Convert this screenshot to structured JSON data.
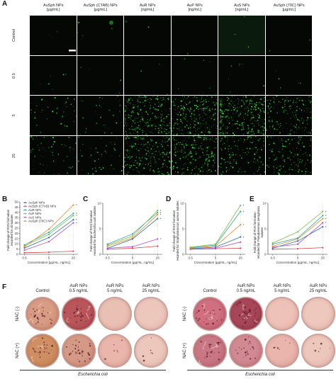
{
  "panel_a": {
    "label": "A",
    "columns": [
      "AuSph NPs\n[µg/mL]",
      "AuSph (CTAB) NPs\n[µg/mL]",
      "AuR NPs\n[ng/mL]",
      "AuP NPs\n[ng/mL]",
      "AuS NPs\n[ng/mL]",
      "AuSph (70C) NPs\n[µg/mL]"
    ],
    "rows": [
      "Control",
      "0.5",
      "5",
      "25"
    ],
    "fluorescence_color": "#37d23c"
  },
  "panel_b": {
    "label": "B"
  },
  "panel_c": {
    "label": "C"
  },
  "panel_d": {
    "label": "D"
  },
  "panel_e": {
    "label": "E"
  },
  "chart_data": [
    {
      "id": "B",
      "type": "line",
      "ylabel": "Fold change of ROS formation\nrecorded for all isolates",
      "xlabel": "Concentration [µg/mL, ng/mL]",
      "categories": [
        "0.5",
        "5",
        "25"
      ],
      "ylim": [
        0,
        50
      ],
      "yticks": [
        0,
        5,
        10,
        15,
        20,
        25,
        30,
        35,
        40,
        45,
        50
      ],
      "legend": "top-left",
      "series": [
        {
          "name": "AuSph NPs",
          "color": "#2a6db5",
          "values": [
            6,
            16,
            33
          ]
        },
        {
          "name": "AuSph (CTAB) NPs",
          "color": "#d94040",
          "values": [
            1.5,
            2,
            3
          ]
        },
        {
          "name": "AuR NPs",
          "color": "#2ea7a0",
          "values": [
            9,
            21,
            39
          ]
        },
        {
          "name": "AuP NPs",
          "color": "#7fbf3f",
          "values": [
            8,
            19,
            37
          ]
        },
        {
          "name": "AuS NPs",
          "color": "#b44fc2",
          "values": [
            4,
            12,
            30
          ]
        },
        {
          "name": "AuSph (70C) NPs",
          "color": "#e08a2c",
          "values": [
            7,
            24,
            47
          ]
        }
      ]
    },
    {
      "id": "C",
      "type": "line",
      "ylabel": "Fold change of ROS formation\nrecorded for Escherichia coli isolates",
      "xlabel": "Concentration [µg/mL, ng/mL]",
      "categories": [
        "0.5",
        "5",
        "25"
      ],
      "ylim": [
        0,
        10
      ],
      "yticks": [
        0,
        5,
        10
      ],
      "series": [
        {
          "color": "#2a6db5",
          "values": [
            1.2,
            3.0,
            7.0
          ]
        },
        {
          "color": "#d94040",
          "values": [
            1.0,
            1.2,
            1.6
          ]
        },
        {
          "color": "#2ea7a0",
          "values": [
            2.0,
            4.0,
            8.2
          ]
        },
        {
          "color": "#7fbf3f",
          "values": [
            1.8,
            3.6,
            8.6
          ]
        },
        {
          "color": "#b44fc2",
          "values": [
            1.2,
            1.5,
            3.0
          ]
        },
        {
          "color": "#e08a2c",
          "values": [
            1.6,
            3.2,
            7.8
          ]
        }
      ]
    },
    {
      "id": "D",
      "type": "line",
      "ylabel": "Fold change of ROS formation\nrecorded for Staphylococcus aureus isolates",
      "xlabel": "Concentration [µg/mL, ng/mL]",
      "categories": [
        "0.5",
        "5",
        "25"
      ],
      "ylim": [
        0,
        10
      ],
      "yticks": [
        0,
        5,
        10
      ],
      "series": [
        {
          "color": "#2a6db5",
          "values": [
            1.1,
            1.4,
            3.4
          ]
        },
        {
          "color": "#d94040",
          "values": [
            1.0,
            1.1,
            1.2
          ]
        },
        {
          "color": "#2ea7a0",
          "values": [
            1.3,
            1.8,
            8.4
          ]
        },
        {
          "color": "#7fbf3f",
          "values": [
            1.4,
            2.0,
            9.6
          ]
        },
        {
          "color": "#b44fc2",
          "values": [
            1.0,
            1.2,
            2.4
          ]
        },
        {
          "color": "#e08a2c",
          "values": [
            1.2,
            1.6,
            5.8
          ]
        }
      ]
    },
    {
      "id": "E",
      "type": "line",
      "ylabel": "Fold change of ROS formation\nrecorded for Pseudomonas aeruginosa isolates",
      "xlabel": "Concentration [µg/mL, ng/mL]",
      "categories": [
        "0.5",
        "5",
        "25"
      ],
      "ylim": [
        0,
        10
      ],
      "yticks": [
        0,
        5,
        10
      ],
      "series": [
        {
          "color": "#2a6db5",
          "values": [
            1.2,
            2.6,
            5.4
          ]
        },
        {
          "color": "#d94040",
          "values": [
            1.0,
            1.1,
            1.3
          ]
        },
        {
          "color": "#2ea7a0",
          "values": [
            2.0,
            3.2,
            7.6
          ]
        },
        {
          "color": "#7fbf3f",
          "values": [
            2.2,
            4.4,
            8.4
          ]
        },
        {
          "color": "#b44fc2",
          "values": [
            1.4,
            2.0,
            6.2
          ]
        },
        {
          "color": "#e08a2c",
          "values": [
            1.6,
            3.0,
            7.0
          ]
        }
      ]
    }
  ],
  "panel_f": {
    "label": "F",
    "groups": [
      {
        "columns": [
          "Control",
          "AuR NPs\n0.5 ng/mL",
          "AuR NPs\n5 ng/mL",
          "AuR NPs\n25 ng/mL"
        ],
        "rows": [
          "NAC (-)",
          "NAC (+)"
        ],
        "organism": "Escherichia coli"
      },
      {
        "columns": [
          "Control",
          "AuR NPs\n0.5 ng/mL",
          "AuR NPs\n5 ng/mL",
          "AuR NPs\n25 ng/mL"
        ],
        "rows": [
          "NAC (-)",
          "NAC (+)"
        ],
        "organism": "Escherichia coli"
      }
    ]
  }
}
